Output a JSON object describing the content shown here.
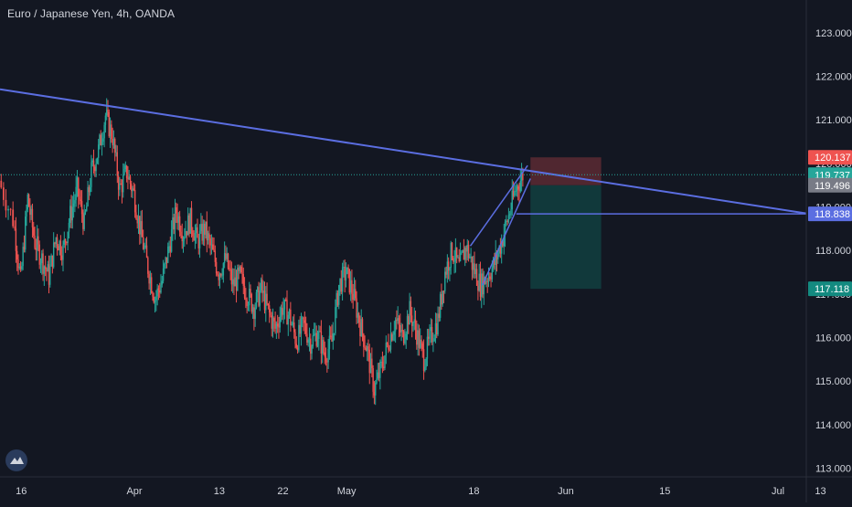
{
  "header": {
    "title": "Euro / Japanese Yen, 4h, OANDA"
  },
  "colors": {
    "background": "#131722",
    "up": "#26a69a",
    "down": "#ef5350",
    "trendline": "#5b6ee1",
    "text": "#d1d4dc",
    "grid": "#1e222d",
    "price_line": "#26a69a",
    "stop_zone": "#5c2a33",
    "target_zone": "#123f3f"
  },
  "chart_data": {
    "type": "candlestick",
    "title": "Euro / Japanese Yen, 4h, OANDA",
    "ylim": [
      112.8,
      123.75
    ],
    "y_ticks": [
      "113.000",
      "114.000",
      "115.000",
      "116.000",
      "117.000",
      "118.000",
      "119.000",
      "120.000",
      "121.000",
      "122.000",
      "123.000"
    ],
    "x_ticks": [
      "16",
      "Apr",
      "13",
      "22",
      "May",
      "18",
      "Jun",
      "15",
      "Jul",
      "13"
    ],
    "x_tick_days": [
      0,
      16,
      28,
      37,
      46,
      64,
      77,
      91,
      107,
      113
    ],
    "x_range": [
      -3,
      111
    ],
    "price_labels": [
      {
        "text": "120.137",
        "value": 120.137,
        "kind": "stop"
      },
      {
        "text": "119.737",
        "value": 119.737,
        "kind": "last"
      },
      {
        "text": "119.496",
        "value": 119.496,
        "kind": "entry"
      },
      {
        "text": "118.838",
        "value": 118.838,
        "kind": "level"
      },
      {
        "text": "117.118",
        "value": 117.118,
        "kind": "target"
      }
    ],
    "last_price": 119.737,
    "series": [
      {
        "name": "EURJPY",
        "points": [
          [
            -3,
            119.6
          ],
          [
            -1,
            118.7
          ],
          [
            0,
            117.3
          ],
          [
            1,
            119.2
          ],
          [
            2,
            118.2
          ],
          [
            3,
            117.8
          ],
          [
            4,
            117.4
          ],
          [
            5,
            118.3
          ],
          [
            6,
            118.0
          ],
          [
            7,
            118.8
          ],
          [
            8,
            119.4
          ],
          [
            9,
            118.6
          ],
          [
            10,
            119.8
          ],
          [
            11,
            120.3
          ],
          [
            12,
            121.1
          ],
          [
            13,
            120.6
          ],
          [
            14,
            119.4
          ],
          [
            15,
            119.8
          ],
          [
            16,
            119.3
          ],
          [
            17,
            118.4
          ],
          [
            18,
            117.6
          ],
          [
            19,
            116.9
          ],
          [
            20,
            117.3
          ],
          [
            21,
            118.1
          ],
          [
            22,
            118.9
          ],
          [
            23,
            118.4
          ],
          [
            24,
            118.7
          ],
          [
            25,
            118.2
          ],
          [
            26,
            118.5
          ],
          [
            27,
            118.0
          ],
          [
            28,
            117.5
          ],
          [
            29,
            117.8
          ],
          [
            30,
            117.2
          ],
          [
            31,
            117.4
          ],
          [
            32,
            117.0
          ],
          [
            33,
            116.7
          ],
          [
            34,
            117.1
          ],
          [
            35,
            116.6
          ],
          [
            36,
            116.2
          ],
          [
            37,
            116.7
          ],
          [
            38,
            116.5
          ],
          [
            39,
            115.9
          ],
          [
            40,
            116.3
          ],
          [
            41,
            115.9
          ],
          [
            42,
            116.1
          ],
          [
            43,
            115.6
          ],
          [
            44,
            115.9
          ],
          [
            45,
            117.2
          ],
          [
            46,
            117.5
          ],
          [
            47,
            117.0
          ],
          [
            48,
            116.3
          ],
          [
            49,
            115.7
          ],
          [
            50,
            114.8
          ],
          [
            51,
            115.3
          ],
          [
            52,
            115.9
          ],
          [
            53,
            116.4
          ],
          [
            54,
            116.0
          ],
          [
            55,
            116.6
          ],
          [
            56,
            116.1
          ],
          [
            57,
            115.5
          ],
          [
            58,
            116.0
          ],
          [
            59,
            116.4
          ],
          [
            60,
            117.5
          ],
          [
            61,
            118.0
          ],
          [
            62,
            117.6
          ],
          [
            63,
            118.1
          ],
          [
            64,
            117.6
          ],
          [
            65,
            117.2
          ],
          [
            66,
            117.4
          ],
          [
            67,
            117.7
          ],
          [
            68,
            118.2
          ],
          [
            69,
            118.8
          ],
          [
            70,
            119.4
          ],
          [
            71,
            119.74
          ]
        ]
      }
    ],
    "annotations": {
      "trendline": {
        "from": [
          -3,
          121.7
        ],
        "to": [
          111,
          118.85
        ]
      },
      "horizontal_level": {
        "from_day": 70,
        "value": 118.838
      },
      "wedge_upper": {
        "from": [
          63.5,
          118.1
        ],
        "to": [
          71.6,
          119.95
        ]
      },
      "wedge_lower": {
        "from": [
          65.2,
          117.2
        ],
        "to": [
          72.0,
          119.65
        ]
      },
      "short_position": {
        "from_day": 72,
        "to_day": 82,
        "entry": 119.496,
        "stop": 120.137,
        "target": 117.118
      }
    },
    "grid": false,
    "legend": "none"
  }
}
